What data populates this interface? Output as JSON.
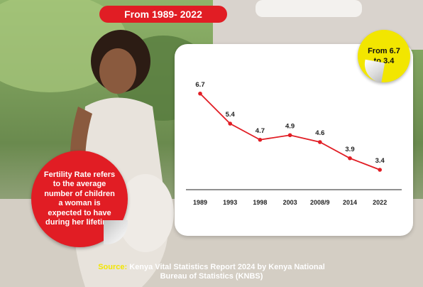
{
  "banner": {
    "text": "From 1989- 2022"
  },
  "sticker": {
    "text": "From 6.7 to 3.4"
  },
  "info": {
    "text": "Fertility Rate refers to the average number of children a woman is expected to have during her lifetime"
  },
  "source": {
    "label": "Source:",
    "line1": "Kenya Vital Statistics Report 2024 by Kenya National",
    "line2": "Bureau of Statistics (KNBS)"
  },
  "colors": {
    "accent": "#e11d24",
    "highlight": "#f2e600",
    "panel": "#ffffff"
  },
  "chart_data": {
    "type": "line",
    "title": "",
    "xlabel": "",
    "ylabel": "",
    "categories": [
      "1989",
      "1993",
      "1998",
      "2003",
      "2008/9",
      "2014",
      "2022"
    ],
    "values": [
      6.7,
      5.4,
      4.7,
      4.9,
      4.6,
      3.9,
      3.4
    ],
    "value_labels": [
      "6.7",
      "5.4",
      "4.7",
      "4.9",
      "4.6",
      "3.9",
      "3.4"
    ],
    "ylim": [
      3.0,
      7.0
    ],
    "grid": false,
    "legend": "none",
    "line_color": "#e11d24"
  }
}
